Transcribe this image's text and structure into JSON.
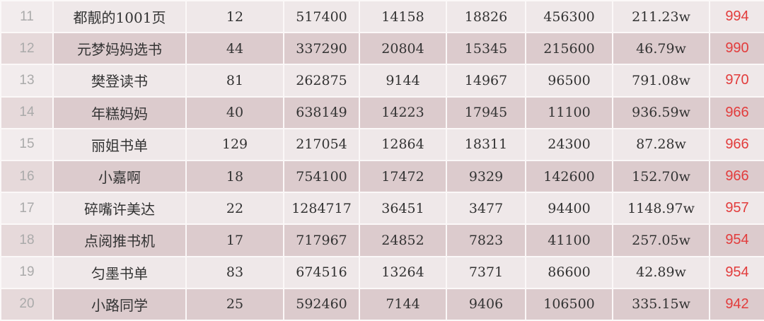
{
  "accent_color": "#e23c3c",
  "rows": [
    [
      "11",
      "都靓的1001页",
      "12",
      "517400",
      "14158",
      "18826",
      "456300",
      "211.23w",
      "994"
    ],
    [
      "12",
      "元梦妈妈选书",
      "44",
      "337290",
      "20804",
      "15345",
      "215600",
      "46.79w",
      "990"
    ],
    [
      "13",
      "樊登读书",
      "81",
      "262875",
      "9144",
      "14967",
      "96500",
      "791.08w",
      "970"
    ],
    [
      "14",
      "年糕妈妈",
      "40",
      "638149",
      "14223",
      "17945",
      "11100",
      "936.59w",
      "966"
    ],
    [
      "15",
      "丽姐书单",
      "129",
      "217054",
      "12864",
      "18311",
      "24300",
      "87.28w",
      "966"
    ],
    [
      "16",
      "小嘉啊",
      "18",
      "754100",
      "17472",
      "9329",
      "142600",
      "152.70w",
      "966"
    ],
    [
      "17",
      "碎嘴许美达",
      "22",
      "1284717",
      "36451",
      "3477",
      "94400",
      "1148.97w",
      "957"
    ],
    [
      "18",
      "点阅推书机",
      "17",
      "717967",
      "24852",
      "7823",
      "41100",
      "257.05w",
      "954"
    ],
    [
      "19",
      "匀墨书单",
      "83",
      "674516",
      "13264",
      "7371",
      "86600",
      "42.89w",
      "954"
    ],
    [
      "20",
      "小路同学",
      "25",
      "592460",
      "7144",
      "9406",
      "106500",
      "335.15w",
      "942"
    ]
  ]
}
